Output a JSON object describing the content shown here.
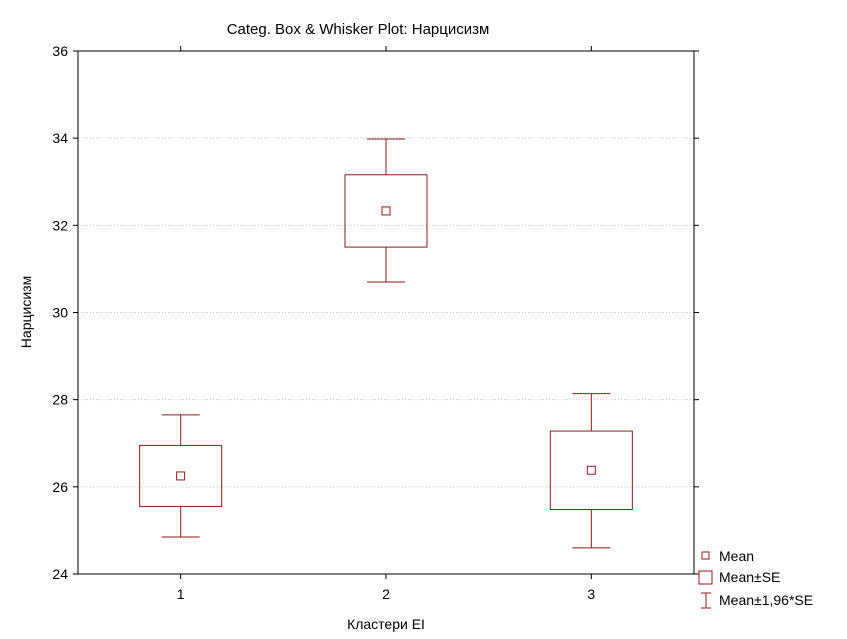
{
  "chart_data": {
    "type": "box",
    "title": "Categ. Box & Whisker Plot: Нарцисизм",
    "xlabel": "Кластери EI",
    "ylabel": "Нарцисизм",
    "categories": [
      "1",
      "2",
      "3"
    ],
    "ylim": [
      24,
      36
    ],
    "yticks": [
      24,
      26,
      28,
      30,
      32,
      34,
      36
    ],
    "grid": true,
    "legend_position": "bottom-right",
    "color": "#8b1a1a",
    "series": [
      {
        "name": "Нарцисизм",
        "mean": [
          26.25,
          32.33,
          26.38
        ],
        "se_low": [
          25.55,
          31.5,
          25.48
        ],
        "se_high": [
          26.95,
          33.16,
          27.28
        ],
        "ci_low": [
          24.85,
          30.7,
          24.6
        ],
        "ci_high": [
          27.65,
          33.98,
          28.14
        ]
      }
    ],
    "legend": [
      {
        "key": "mean",
        "label": "Mean"
      },
      {
        "key": "se",
        "label": "Mean±SE"
      },
      {
        "key": "ci",
        "label": "Mean±1,96*SE"
      }
    ]
  }
}
